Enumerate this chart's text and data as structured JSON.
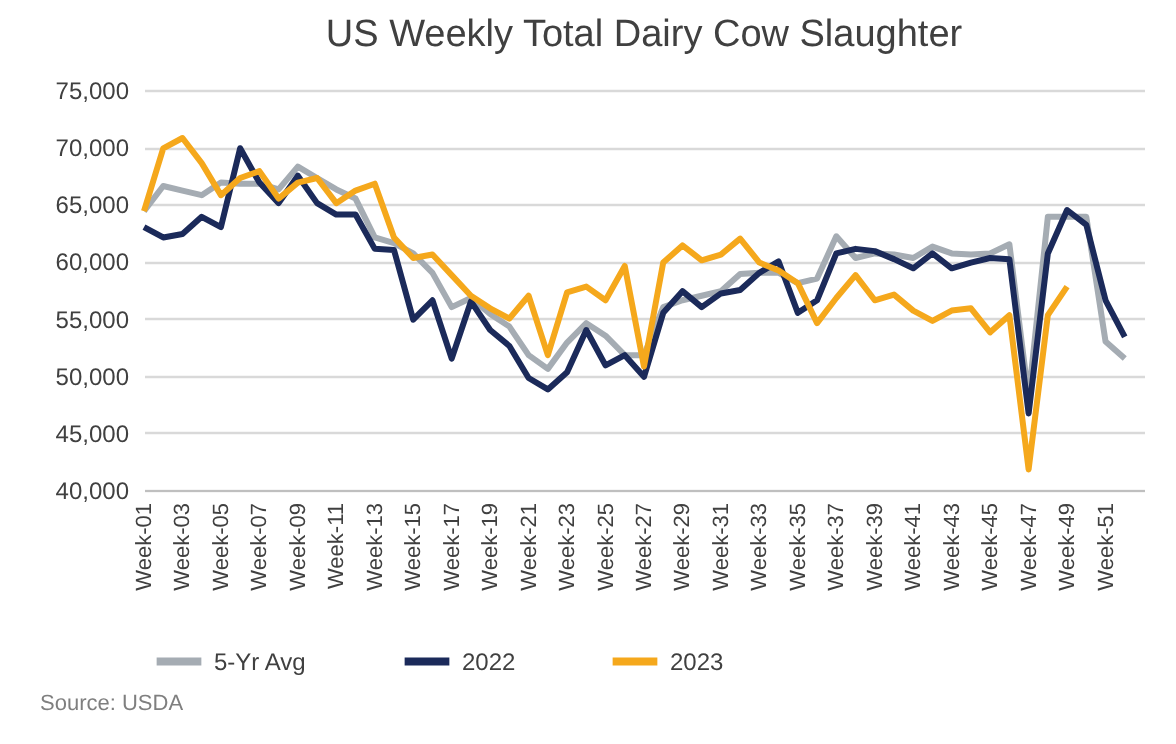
{
  "chart_data": {
    "type": "line",
    "title": "US Weekly Total Dairy Cow Slaughter",
    "categories": [
      "Week-01",
      null,
      "Week-03",
      null,
      "Week-05",
      null,
      "Week-07",
      null,
      "Week-09",
      null,
      "Week-11",
      null,
      "Week-13",
      null,
      "Week-15",
      null,
      "Week-17",
      null,
      "Week-19",
      null,
      "Week-21",
      null,
      "Week-23",
      null,
      "Week-25",
      null,
      "Week-27",
      null,
      "Week-29",
      null,
      "Week-31",
      null,
      "Week-33",
      null,
      "Week-35",
      null,
      "Week-37",
      null,
      "Week-39",
      null,
      "Week-41",
      null,
      "Week-43",
      null,
      "Week-45",
      null,
      "Week-47",
      null,
      "Week-49",
      null,
      "Week-51",
      null
    ],
    "series": [
      {
        "name": "5-Yr Avg",
        "color": "#a5acb3",
        "values": [
          64400,
          66600,
          66200,
          65800,
          66900,
          66800,
          66800,
          66300,
          68300,
          67300,
          66300,
          65500,
          62100,
          61600,
          60700,
          59000,
          56000,
          56800,
          55400,
          54300,
          51800,
          50600,
          52900,
          54600,
          53500,
          51800,
          51800,
          56000,
          56600,
          57000,
          57400,
          58900,
          59000,
          59000,
          58100,
          58500,
          62200,
          60300,
          60700,
          60600,
          60300,
          61300,
          60700,
          60600,
          60700,
          61500,
          48100,
          63900,
          63900,
          63900,
          53000,
          51500
        ]
      },
      {
        "name": "2022",
        "color": "#1b2a5a",
        "values": [
          63000,
          62100,
          62400,
          63900,
          63000,
          69900,
          66900,
          65100,
          67500,
          65100,
          64100,
          64100,
          61100,
          61000,
          54900,
          56600,
          51500,
          56500,
          54000,
          52600,
          49800,
          48800,
          50300,
          54000,
          50900,
          51800,
          49900,
          55500,
          57400,
          56000,
          57200,
          57500,
          59000,
          60000,
          55500,
          56600,
          60700,
          61100,
          60900,
          60200,
          59400,
          60700,
          59400,
          59900,
          60300,
          60200,
          46700,
          60700,
          64500,
          63200,
          56600,
          53400
        ]
      },
      {
        "name": "2023",
        "color": "#f5a81c",
        "values": [
          64400,
          69900,
          70800,
          68600,
          65800,
          67300,
          67900,
          65500,
          66900,
          67300,
          65100,
          66200,
          66800,
          62100,
          60300,
          60600,
          58800,
          57000,
          55900,
          55000,
          57000,
          51800,
          57300,
          57800,
          56600,
          59600,
          50800,
          59900,
          61400,
          60100,
          60600,
          62000,
          59900,
          59200,
          58100,
          54600,
          56800,
          58800,
          56600,
          57100,
          55700,
          54800,
          55700,
          55900,
          53800,
          55300,
          41800,
          55300,
          57800,
          null,
          null,
          null
        ]
      }
    ],
    "ylim": [
      40000,
      75000
    ],
    "yticks": [
      {
        "value": 40000,
        "label": "40,000"
      },
      {
        "value": 45000,
        "label": "45,000"
      },
      {
        "value": 50000,
        "label": "50,000"
      },
      {
        "value": 55000,
        "label": "55,000"
      },
      {
        "value": 60000,
        "label": "60,000"
      },
      {
        "value": 65000,
        "label": "65,000"
      },
      {
        "value": 70000,
        "label": "70,000"
      },
      {
        "value": 75000,
        "label": "75,000"
      }
    ],
    "grid": "y",
    "legend": "bottom",
    "line_style": "solid",
    "marker": "none",
    "annotations": [
      "Source: USDA"
    ]
  }
}
